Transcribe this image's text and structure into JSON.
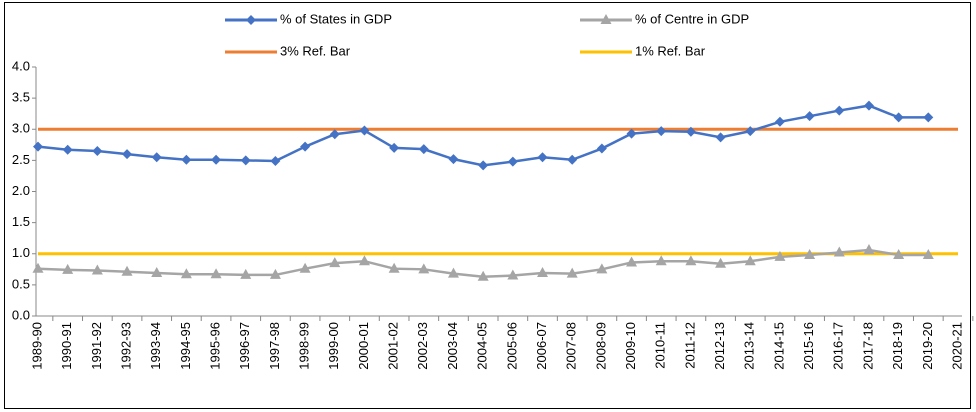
{
  "chart_data": {
    "type": "line",
    "categories": [
      "1989-90",
      "1990-91",
      "1991-92",
      "1992-93",
      "1993-94",
      "1994-95",
      "1995-96",
      "1996-97",
      "1997-98",
      "1998-99",
      "1999-00",
      "2000-01",
      "2001-02",
      "2002-03",
      "2003-04",
      "2004-05",
      "2005-06",
      "2006-07",
      "2007-08",
      "2008-09",
      "2009-10",
      "2010-11",
      "2011-12",
      "2012-13",
      "2013-14",
      "2014-15",
      "2015-16",
      "2016-17",
      "2017-18",
      "2018-19",
      "2019-20",
      "2020-21"
    ],
    "series": [
      {
        "name": "% of States in GDP",
        "color": "#4472c4",
        "marker": "diamond",
        "values": [
          2.72,
          2.67,
          2.65,
          2.6,
          2.55,
          2.51,
          2.51,
          2.5,
          2.49,
          2.72,
          2.92,
          2.98,
          2.7,
          2.68,
          2.52,
          2.42,
          2.48,
          2.55,
          2.51,
          2.69,
          2.93,
          2.97,
          2.96,
          2.87,
          2.97,
          3.12,
          3.21,
          3.3,
          3.38,
          3.19,
          3.19,
          null
        ]
      },
      {
        "name": "% of Centre in GDP",
        "color": "#a5a5a5",
        "marker": "triangle",
        "values": [
          0.76,
          0.74,
          0.73,
          0.71,
          0.69,
          0.67,
          0.67,
          0.66,
          0.66,
          0.76,
          0.85,
          0.88,
          0.76,
          0.75,
          0.68,
          0.63,
          0.65,
          0.69,
          0.68,
          0.75,
          0.86,
          0.88,
          0.88,
          0.84,
          0.88,
          0.95,
          0.98,
          1.02,
          1.06,
          0.98,
          0.98,
          null
        ]
      },
      {
        "name": "3% Ref. Bar",
        "color": "#ed7d31",
        "values": [
          3,
          3,
          3,
          3,
          3,
          3,
          3,
          3,
          3,
          3,
          3,
          3,
          3,
          3,
          3,
          3,
          3,
          3,
          3,
          3,
          3,
          3,
          3,
          3,
          3,
          3,
          3,
          3,
          3,
          3,
          3,
          3
        ]
      },
      {
        "name": "1% Ref. Bar",
        "color": "#ffc000",
        "values": [
          1,
          1,
          1,
          1,
          1,
          1,
          1,
          1,
          1,
          1,
          1,
          1,
          1,
          1,
          1,
          1,
          1,
          1,
          1,
          1,
          1,
          1,
          1,
          1,
          1,
          1,
          1,
          1,
          1,
          1,
          1,
          1
        ]
      }
    ],
    "ylim": [
      0,
      4
    ],
    "yticks": [
      {
        "value": 0,
        "label": "0.0"
      },
      {
        "value": 0.5,
        "label": "0.5"
      },
      {
        "value": 1,
        "label": "1.0"
      },
      {
        "value": 1.5,
        "label": "1.5"
      },
      {
        "value": 2,
        "label": "2.0"
      },
      {
        "value": 2.5,
        "label": "2.5"
      },
      {
        "value": 3,
        "label": "3.0"
      },
      {
        "value": 3.5,
        "label": "3.5"
      },
      {
        "value": 4,
        "label": "4.0"
      }
    ],
    "grid": false
  }
}
